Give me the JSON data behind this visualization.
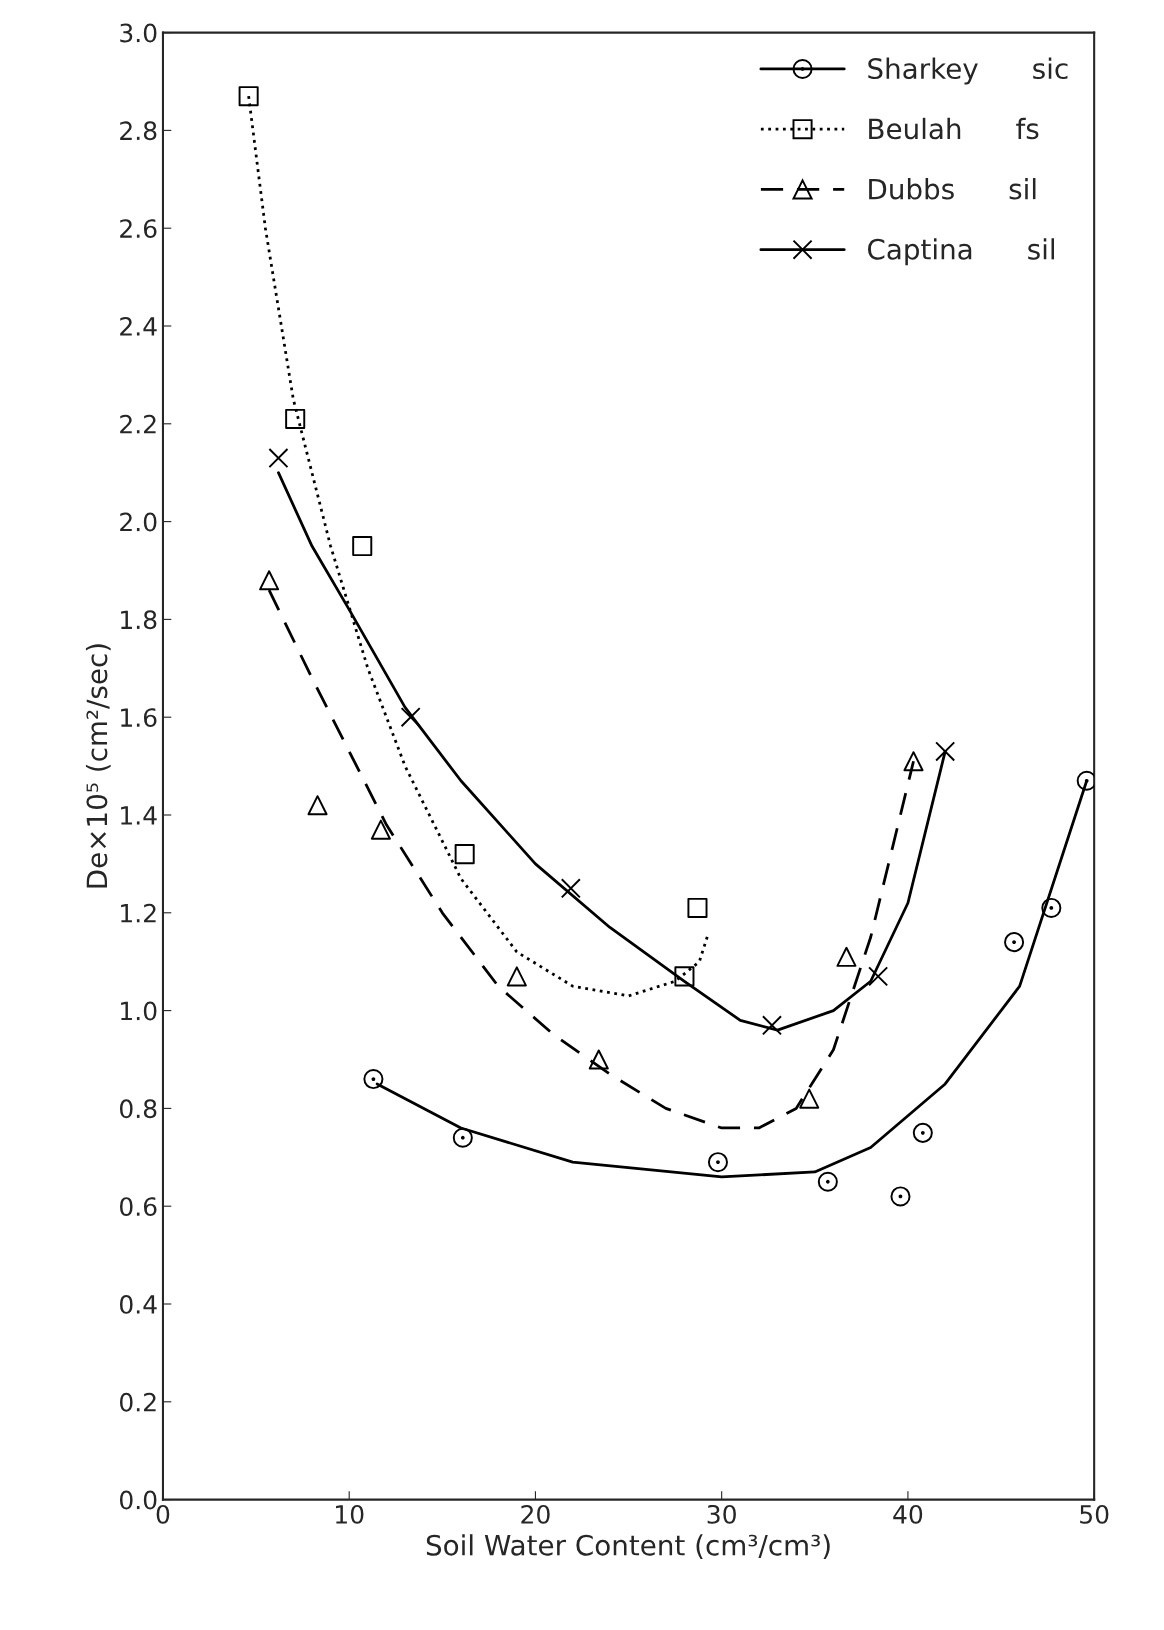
{
  "chart_data": {
    "type": "scatter",
    "xlabel": "Soil Water Content (cm³/cm³)",
    "ylabel": "De×10⁵ (cm²/sec)",
    "xlim": [
      0,
      50
    ],
    "xticks": [
      0,
      10,
      20,
      30,
      40,
      50
    ],
    "ylim": [
      0,
      3.0
    ],
    "yticks": [
      {
        "value": 0,
        "label": "0.0"
      },
      {
        "value": 0.2,
        "label": "0.2"
      },
      {
        "value": 0.4,
        "label": "0.4"
      },
      {
        "value": 0.6,
        "label": "0.6"
      },
      {
        "value": 0.8,
        "label": "0.8"
      },
      {
        "value": 1.0,
        "label": "1.0"
      },
      {
        "value": 1.2,
        "label": "1.2"
      },
      {
        "value": 1.4,
        "label": "1.4"
      },
      {
        "value": 1.6,
        "label": "1.6"
      },
      {
        "value": 1.8,
        "label": "1.8"
      },
      {
        "value": 2.0,
        "label": "2.0"
      },
      {
        "value": 2.2,
        "label": "2.2"
      },
      {
        "value": 2.4,
        "label": "2.4"
      },
      {
        "value": 2.6,
        "label": "2.6"
      },
      {
        "value": 2.8,
        "label": "2.8"
      },
      {
        "value": 3.0,
        "label": "3.0"
      }
    ],
    "grid": false,
    "legend": "top right",
    "series": [
      {
        "name": "Sharkey      sic",
        "marker": "circle",
        "color": "#000000",
        "x": [
          11.3,
          16.1,
          29.8,
          35.7,
          39.6,
          40.8,
          45.7,
          47.7,
          49.6
        ],
        "values": [
          0.86,
          0.74,
          0.69,
          0.65,
          0.62,
          0.75,
          1.14,
          1.21,
          1.47
        ]
      },
      {
        "type": "line",
        "line_style": "solid",
        "marker": "none",
        "color": "#000000",
        "x": [
          11.5,
          16,
          22,
          30,
          35,
          38,
          42,
          46,
          49.6
        ],
        "values": [
          0.85,
          0.76,
          0.69,
          0.66,
          0.67,
          0.72,
          0.85,
          1.05,
          1.47
        ]
      },
      {
        "name": "Beulah      fs",
        "marker": "square",
        "color": "#000000",
        "x": [
          4.6,
          7.1,
          10.7,
          16.2,
          28.0,
          28.7
        ],
        "values": [
          2.87,
          2.21,
          1.95,
          1.32,
          1.07,
          1.21
        ]
      },
      {
        "type": "line",
        "line_style": "dotted",
        "marker": "none",
        "color": "#000000",
        "x": [
          4.6,
          5.5,
          7,
          9,
          11,
          13,
          16,
          19,
          22,
          25,
          27.5,
          28.8,
          29.3
        ],
        "values": [
          2.87,
          2.6,
          2.25,
          1.95,
          1.7,
          1.5,
          1.27,
          1.12,
          1.05,
          1.03,
          1.06,
          1.1,
          1.16
        ]
      },
      {
        "name": "Dubbs      sil",
        "marker": "triangle",
        "color": "#000000",
        "x": [
          5.7,
          8.3,
          11.7,
          19.0,
          23.4,
          34.7,
          36.7,
          40.3
        ],
        "values": [
          1.88,
          1.42,
          1.37,
          1.07,
          0.9,
          0.82,
          1.11,
          1.51
        ]
      },
      {
        "type": "line",
        "line_style": "dashed",
        "marker": "none",
        "color": "#000000",
        "x": [
          5.7,
          8,
          10,
          12,
          15,
          18,
          21,
          24,
          27,
          30,
          32,
          34,
          36,
          38,
          40.3
        ],
        "values": [
          1.86,
          1.68,
          1.53,
          1.38,
          1.2,
          1.05,
          0.95,
          0.87,
          0.8,
          0.76,
          0.76,
          0.8,
          0.92,
          1.15,
          1.51
        ]
      },
      {
        "name": "Captina      sil",
        "marker": "cross",
        "color": "#000000",
        "x": [
          6.2,
          13.3,
          21.9,
          32.7,
          38.4,
          42.0
        ],
        "values": [
          2.13,
          1.6,
          1.25,
          0.97,
          1.07,
          1.53
        ]
      },
      {
        "type": "line",
        "line_style": "solid",
        "marker": "none",
        "color": "#000000",
        "x": [
          6.2,
          8,
          10,
          13,
          16,
          20,
          24,
          28,
          31,
          33,
          36,
          38,
          40,
          42
        ],
        "values": [
          2.1,
          1.95,
          1.82,
          1.62,
          1.47,
          1.3,
          1.17,
          1.06,
          0.98,
          0.96,
          1.0,
          1.06,
          1.22,
          1.53
        ]
      }
    ]
  }
}
